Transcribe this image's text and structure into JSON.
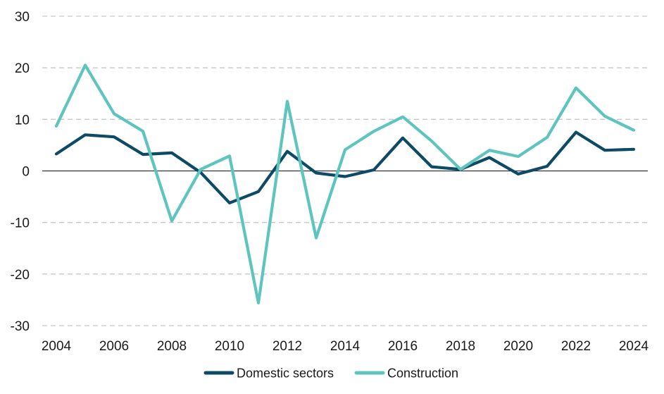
{
  "chart_data": {
    "type": "line",
    "x": [
      2004,
      2005,
      2006,
      2007,
      2008,
      2009,
      2010,
      2011,
      2012,
      2013,
      2014,
      2015,
      2016,
      2017,
      2018,
      2019,
      2020,
      2021,
      2022,
      2023,
      2024
    ],
    "x_tick_labels": [
      "2004",
      "2006",
      "2008",
      "2010",
      "2012",
      "2014",
      "2016",
      "2018",
      "2020",
      "2022",
      "2024"
    ],
    "y_tick_labels": [
      "30",
      "20",
      "10",
      "0",
      "-10",
      "-20",
      "-30"
    ],
    "ylim": [
      -30,
      30
    ],
    "grid": "horizontal dashed",
    "legend_position": "bottom",
    "series": [
      {
        "name": "Domestic sectors",
        "color": "#0d4a66",
        "values": [
          3.3,
          7.0,
          6.6,
          3.2,
          3.5,
          -0.3,
          -6.2,
          -4.0,
          3.8,
          -0.4,
          -1.1,
          0.2,
          6.4,
          0.8,
          0.3,
          2.6,
          -0.6,
          0.9,
          7.5,
          4.0,
          4.2
        ]
      },
      {
        "name": "Construction",
        "color": "#5ec4be",
        "values": [
          8.7,
          20.5,
          11.1,
          7.7,
          -9.7,
          0.3,
          2.9,
          -25.6,
          13.5,
          -13.0,
          4.1,
          7.7,
          10.5,
          5.8,
          0.3,
          4.0,
          2.8,
          6.5,
          16.1,
          10.6,
          7.9
        ]
      }
    ]
  }
}
